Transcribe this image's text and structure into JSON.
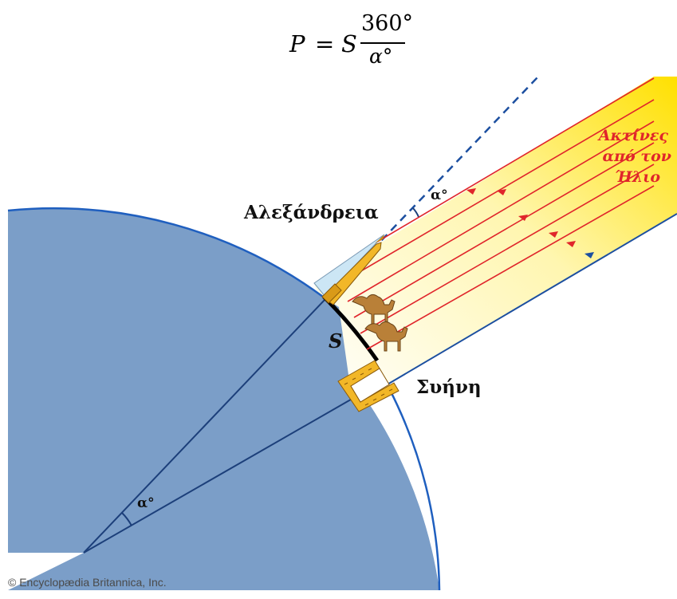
{
  "formula": {
    "lhs": "P",
    "equals": "=",
    "factor": "S",
    "numerator": "360°",
    "denominator": "α°"
  },
  "labels": {
    "alexandria": "Αλεξάνδρεια",
    "syene": "Συήνη",
    "arc": "S",
    "angle_top": "α°",
    "angle_center": "α°",
    "sun_rays": [
      "Ακτίνες",
      "από τον",
      "Ήλιο"
    ]
  },
  "copyright": "© Encyclopædia Britannica, Inc.",
  "colors": {
    "earth": "#7b9ec8",
    "earth_edge": "#1f5fbf",
    "ray": "#e0252b",
    "ray_label": "#e0252b",
    "sun_yellow": "#ffe200",
    "dark_line": "#1c3f7a",
    "brick": "#f2b728"
  },
  "icons": [
    "obelisk-icon",
    "camel-icon",
    "well-icon"
  ]
}
